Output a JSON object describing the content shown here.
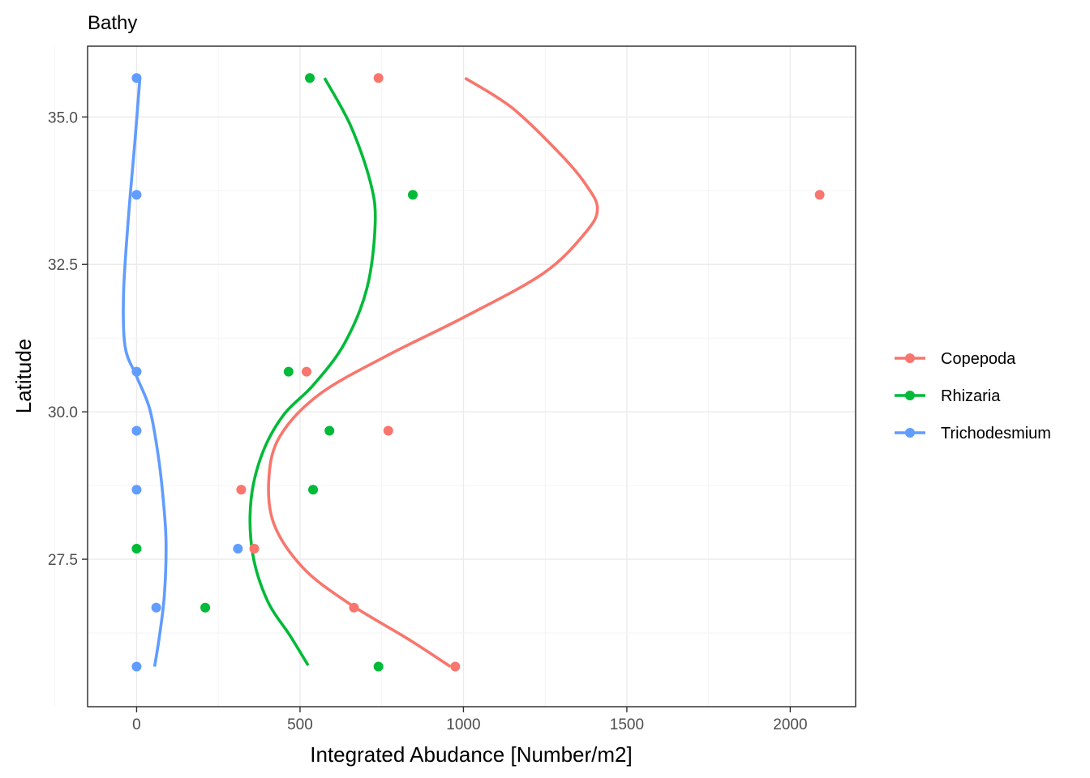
{
  "chart_data": {
    "type": "scatter",
    "title": "Bathy",
    "xlabel": "Integrated Abudance [Number/m2]",
    "ylabel": "Latitude",
    "xlim": [
      -150,
      2200
    ],
    "ylim": [
      25.0,
      36.2
    ],
    "x_ticks": [
      0,
      500,
      1000,
      1500,
      2000
    ],
    "x_tick_labels": [
      "0",
      "500",
      "1000",
      "1500",
      "2000"
    ],
    "y_ticks": [
      27.5,
      30.0,
      32.5,
      35.0
    ],
    "y_tick_labels": [
      "27.5",
      "30.0",
      "32.5",
      "35.0"
    ],
    "grid": true,
    "legend_position": "right",
    "series": [
      {
        "name": "Copepoda",
        "color": "#F8766D",
        "points": [
          {
            "x": 740,
            "y": 35.66
          },
          {
            "x": 2090,
            "y": 33.68
          },
          {
            "x": 520,
            "y": 30.68
          },
          {
            "x": 770,
            "y": 29.68
          },
          {
            "x": 320,
            "y": 28.68
          },
          {
            "x": 360,
            "y": 27.68
          },
          {
            "x": 665,
            "y": 26.68
          },
          {
            "x": 975,
            "y": 25.68
          }
        ],
        "smooth": [
          {
            "x": 1005,
            "y": 35.66
          },
          {
            "x": 1150,
            "y": 35.15
          },
          {
            "x": 1300,
            "y": 34.35
          },
          {
            "x": 1375,
            "y": 33.85
          },
          {
            "x": 1410,
            "y": 33.45
          },
          {
            "x": 1375,
            "y": 33.05
          },
          {
            "x": 1245,
            "y": 32.35
          },
          {
            "x": 1000,
            "y": 31.6
          },
          {
            "x": 765,
            "y": 30.95
          },
          {
            "x": 560,
            "y": 30.3
          },
          {
            "x": 440,
            "y": 29.6
          },
          {
            "x": 405,
            "y": 28.9
          },
          {
            "x": 420,
            "y": 28.1
          },
          {
            "x": 510,
            "y": 27.35
          },
          {
            "x": 650,
            "y": 26.75
          },
          {
            "x": 830,
            "y": 26.15
          },
          {
            "x": 960,
            "y": 25.68
          }
        ]
      },
      {
        "name": "Rhizaria",
        "color": "#00BA38",
        "points": [
          {
            "x": 530,
            "y": 35.66
          },
          {
            "x": 845,
            "y": 33.68
          },
          {
            "x": 465,
            "y": 30.68
          },
          {
            "x": 590,
            "y": 29.68
          },
          {
            "x": 540,
            "y": 28.68
          },
          {
            "x": 0,
            "y": 27.68
          },
          {
            "x": 210,
            "y": 26.68
          },
          {
            "x": 740,
            "y": 25.68
          }
        ],
        "smooth": [
          {
            "x": 575,
            "y": 35.66
          },
          {
            "x": 655,
            "y": 34.85
          },
          {
            "x": 715,
            "y": 33.9
          },
          {
            "x": 730,
            "y": 33.2
          },
          {
            "x": 705,
            "y": 32.1
          },
          {
            "x": 635,
            "y": 31.15
          },
          {
            "x": 540,
            "y": 30.45
          },
          {
            "x": 450,
            "y": 29.95
          },
          {
            "x": 385,
            "y": 29.3
          },
          {
            "x": 350,
            "y": 28.5
          },
          {
            "x": 355,
            "y": 27.6
          },
          {
            "x": 400,
            "y": 26.8
          },
          {
            "x": 470,
            "y": 26.2
          },
          {
            "x": 525,
            "y": 25.7
          }
        ]
      },
      {
        "name": "Trichodesmium",
        "color": "#619CFF",
        "points": [
          {
            "x": 0,
            "y": 35.66
          },
          {
            "x": 0,
            "y": 33.68
          },
          {
            "x": 0,
            "y": 30.68
          },
          {
            "x": 0,
            "y": 29.68
          },
          {
            "x": 0,
            "y": 28.68
          },
          {
            "x": 310,
            "y": 27.68
          },
          {
            "x": 60,
            "y": 26.68
          },
          {
            "x": 0,
            "y": 25.68
          }
        ],
        "smooth": [
          {
            "x": 10,
            "y": 35.66
          },
          {
            "x": -5,
            "y": 34.6
          },
          {
            "x": -25,
            "y": 33.3
          },
          {
            "x": -40,
            "y": 32.0
          },
          {
            "x": -35,
            "y": 31.1
          },
          {
            "x": 0,
            "y": 30.6
          },
          {
            "x": 40,
            "y": 30.05
          },
          {
            "x": 65,
            "y": 29.3
          },
          {
            "x": 80,
            "y": 28.6
          },
          {
            "x": 90,
            "y": 27.8
          },
          {
            "x": 85,
            "y": 26.9
          },
          {
            "x": 70,
            "y": 26.2
          },
          {
            "x": 55,
            "y": 25.68
          }
        ]
      }
    ]
  }
}
